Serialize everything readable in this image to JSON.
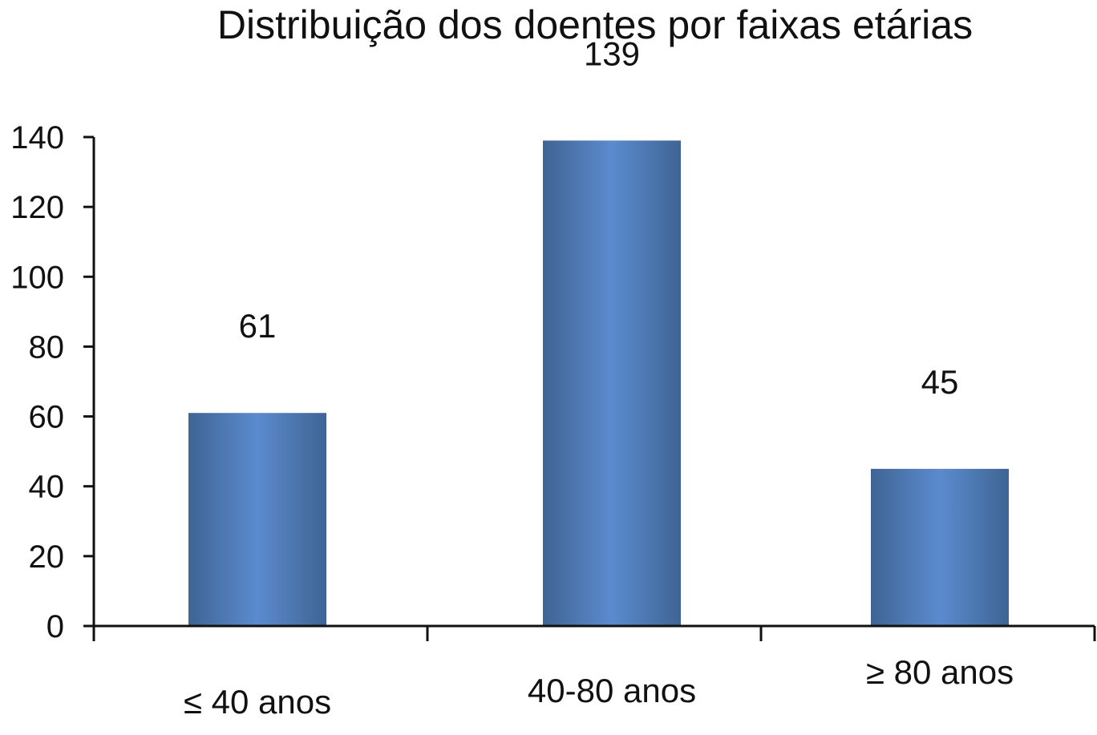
{
  "chart_data": {
    "type": "bar",
    "title": "Distribuição dos doentes por faixas etárias",
    "categories": [
      "≤ 40 anos",
      "40-80 anos",
      "≥ 80 anos"
    ],
    "values": [
      61,
      139,
      45
    ],
    "data_labels": [
      "61",
      "139",
      "45"
    ],
    "xlabel": "",
    "ylabel": "",
    "ylim": [
      0,
      140
    ],
    "y_ticks": [
      0,
      20,
      40,
      60,
      80,
      100,
      120,
      140
    ],
    "grid": false,
    "legend": "none",
    "bar_color": "#4f7fbf",
    "bar_color_dark": "#3f6494",
    "bar_color_light": "#5b8bce"
  }
}
